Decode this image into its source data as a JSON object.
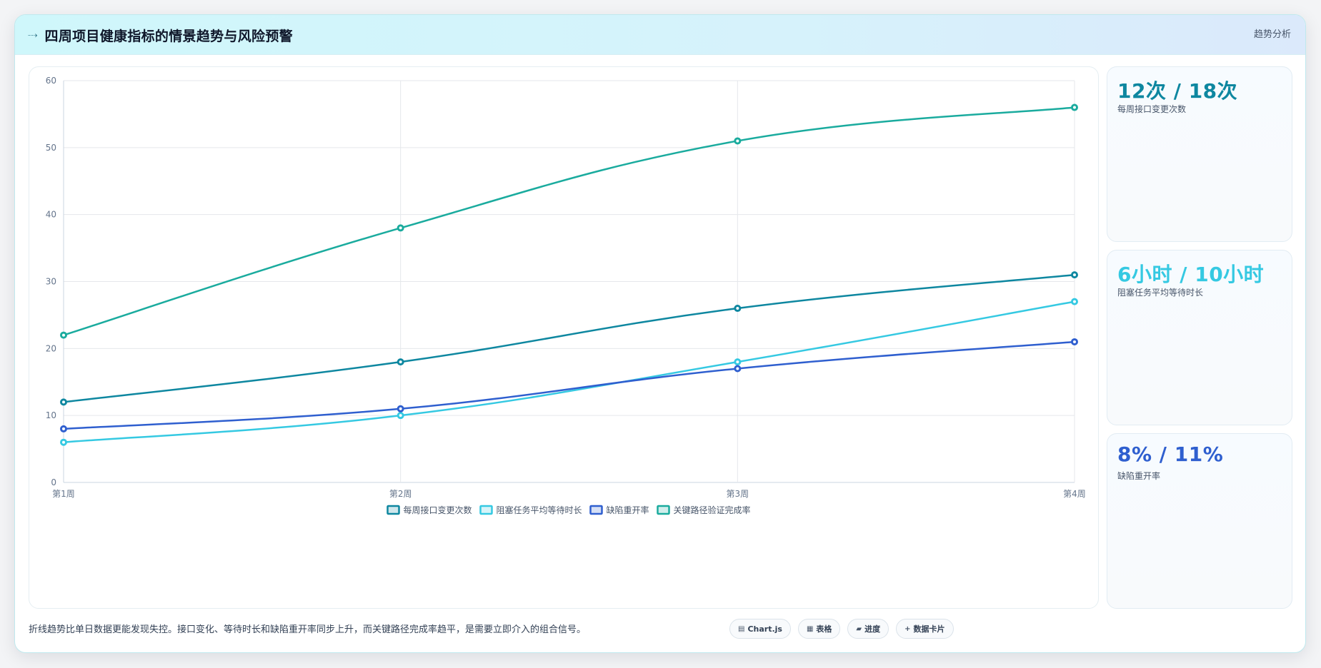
{
  "header": {
    "icon": "line-chart-icon",
    "title": "四周项目健康指标的情景趋势与风险预警",
    "tag": "趋势分析"
  },
  "chart_data": {
    "type": "line",
    "categories": [
      "第1周",
      "第2周",
      "第3周",
      "第4周"
    ],
    "series": [
      {
        "name": "每周接口变更次数",
        "values": [
          12,
          18,
          26,
          31
        ],
        "color": "#0e87a0"
      },
      {
        "name": "阻塞任务平均等待时长",
        "values": [
          6,
          10,
          18,
          27
        ],
        "color": "#35c9e2"
      },
      {
        "name": "缺陷重开率",
        "values": [
          8,
          11,
          17,
          21
        ],
        "color": "#2f5fcf"
      },
      {
        "name": "关键路径验证完成率",
        "values": [
          22,
          38,
          51,
          56
        ],
        "color": "#1aab9e"
      }
    ],
    "ylim": [
      0,
      60
    ],
    "yticks": [
      0,
      10,
      20,
      30,
      40,
      50,
      60
    ],
    "grid": true,
    "legend": "bottom"
  },
  "stats": [
    {
      "value": "12次 / 18次",
      "label": "每周接口变更次数",
      "color": "#0e87a0"
    },
    {
      "value": "6小时 / 10小时",
      "label": "阻塞任务平均等待时长",
      "color": "#35c9e2"
    },
    {
      "value": "8% / 11%",
      "label": "缺陷重开率",
      "color": "#2f5fcf"
    }
  ],
  "footer": {
    "note": "折线趋势比单日数据更能发现失控。接口变化、等待时长和缺陷重开率同步上升，而关键路径完成率趋平，是需要立即介入的组合信号。",
    "badges": [
      {
        "icon": "chart-icon",
        "glyph": "▤",
        "label": "Chart.js"
      },
      {
        "icon": "table-icon",
        "glyph": "▦",
        "label": "表格"
      },
      {
        "icon": "progress-icon",
        "glyph": "▰",
        "label": "进度"
      },
      {
        "icon": "plus-icon",
        "glyph": "+",
        "label": "数据卡片"
      }
    ]
  }
}
